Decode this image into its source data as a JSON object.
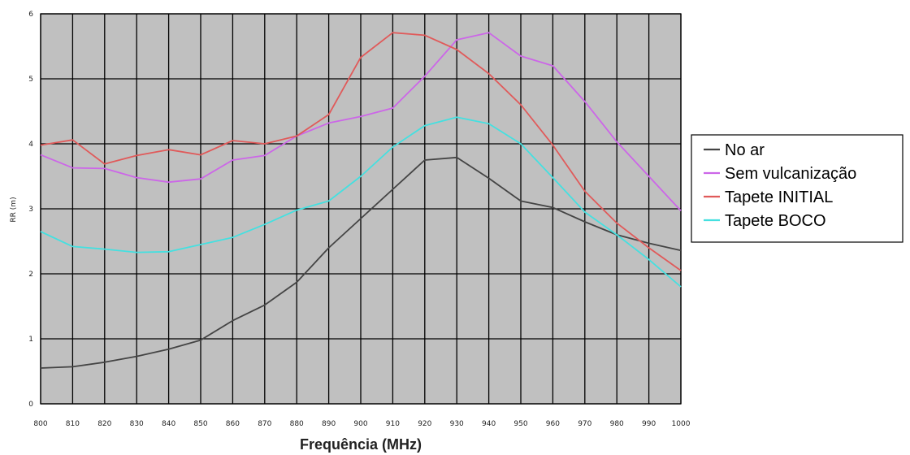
{
  "chart_data": {
    "type": "line",
    "xlabel": "Frequência (MHz)",
    "ylabel": "RR (m)",
    "xlim": [
      800,
      1000
    ],
    "ylim": [
      0,
      6
    ],
    "x_ticks": [
      "800",
      "810",
      "820",
      "830",
      "840",
      "850",
      "860",
      "870",
      "880",
      "890",
      "900",
      "910",
      "920",
      "930",
      "940",
      "950",
      "960",
      "970",
      "980",
      "990",
      "1000"
    ],
    "y_ticks": [
      "0",
      "1",
      "2",
      "3",
      "4",
      "5",
      "6"
    ],
    "grid": true,
    "legend_position": "right",
    "plot_background": "#c0c0c0",
    "grid_color": "#000000",
    "x": [
      800,
      810,
      820,
      830,
      840,
      850,
      860,
      870,
      880,
      890,
      900,
      910,
      920,
      930,
      940,
      950,
      960,
      970,
      980,
      990,
      1000
    ],
    "series": [
      {
        "name": "No ar",
        "color": "#444444",
        "values": [
          0.55,
          0.57,
          0.64,
          0.73,
          0.84,
          0.98,
          1.28,
          1.52,
          1.87,
          2.4,
          2.85,
          3.3,
          3.75,
          3.79,
          3.47,
          3.12,
          3.02,
          2.8,
          2.6,
          2.47,
          2.36
        ]
      },
      {
        "name": "Sem vulcanização",
        "color": "#cc66e8",
        "values": [
          3.83,
          3.63,
          3.62,
          3.48,
          3.41,
          3.46,
          3.75,
          3.82,
          4.12,
          4.32,
          4.42,
          4.55,
          5.04,
          5.6,
          5.71,
          5.35,
          5.2,
          4.65,
          4.03,
          3.5,
          2.97
        ]
      },
      {
        "name": "Tapete INITIAL",
        "color": "#e05a5a",
        "values": [
          3.98,
          4.06,
          3.69,
          3.82,
          3.91,
          3.83,
          4.05,
          4.0,
          4.12,
          4.45,
          5.33,
          5.71,
          5.67,
          5.45,
          5.08,
          4.6,
          3.98,
          3.27,
          2.78,
          2.4,
          2.05
        ]
      },
      {
        "name": "Tapete BOCO",
        "color": "#44e0e0",
        "values": [
          2.65,
          2.42,
          2.38,
          2.33,
          2.34,
          2.45,
          2.56,
          2.76,
          2.98,
          3.12,
          3.5,
          3.95,
          4.28,
          4.41,
          4.31,
          4.0,
          3.48,
          2.95,
          2.6,
          2.22,
          1.8
        ]
      }
    ]
  }
}
